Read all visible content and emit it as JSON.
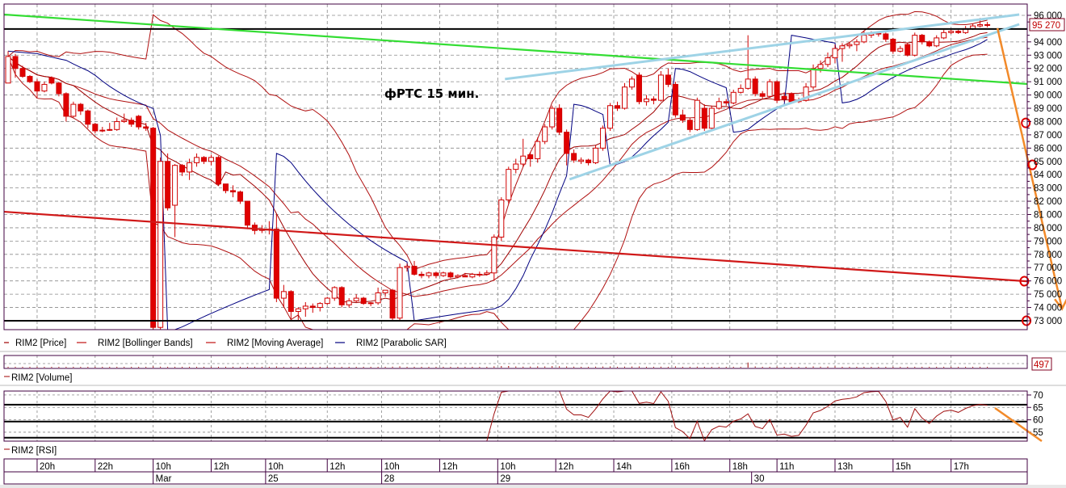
{
  "chart_data": {
    "type": "candlestick",
    "title": "фРТС   15 мин.",
    "ylim": [
      72330,
      96850
    ],
    "xlim": [
      -0.56,
      140.5
    ],
    "grid": true,
    "y_ticks": [
      "96 000",
      "94 000",
      "93 000",
      "92 000",
      "91 000",
      "90 000",
      "89 000",
      "88 000",
      "87 000",
      "86 000",
      "85 000",
      "84 000",
      "83 000",
      "82 000",
      "81 000",
      "80 000",
      "79 000",
      "78 000",
      "77 000",
      "76 000",
      "75 000",
      "74 000",
      "73 000"
    ],
    "last_price_label": "95 270",
    "last_price": 95270,
    "colors": {
      "up": "#ffffff",
      "down": "#e00000",
      "candle_edge": "#d00000",
      "bollinger": "#b01010",
      "moving_average": "#a00000",
      "sar": "#000080",
      "rsi": "#a01010",
      "support_upper": "#9ed3e6",
      "trend_green": "#33dd33",
      "trend_red": "#d01818",
      "forecast": "#f28a2a",
      "level": "#000000"
    },
    "legend": [
      {
        "label": "RIM2 [Price]",
        "color": "#a00000"
      },
      {
        "label": "RIM2 [Bollinger Bands]",
        "color": "#c01010"
      },
      {
        "label": "RIM2 [Moving Average]",
        "color": "#c01010"
      },
      {
        "label": "RIM2 [Parabolic SAR]",
        "color": "#000080"
      }
    ],
    "volume_label": "RIM2 [Volume]",
    "volume_max_label": "497",
    "volume_max": 497,
    "rsi_label": "RIM2 [RSI]",
    "rsi_ylim": [
      51.4,
      71.6
    ],
    "rsi_ticks": [
      "70",
      "65",
      "60",
      "55"
    ],
    "rsi_levels": [
      66.1,
      59.3,
      52.8
    ],
    "time_ticks": [
      {
        "label": "20h",
        "bar": 4
      },
      {
        "label": "22h",
        "bar": 12
      },
      {
        "label": "10h",
        "bar": 20
      },
      {
        "label": "12h",
        "bar": 28
      },
      {
        "label": "10h",
        "bar": 35.5
      },
      {
        "label": "12h",
        "bar": 44
      },
      {
        "label": "10h",
        "bar": 51.5
      },
      {
        "label": "12h",
        "bar": 59.5
      },
      {
        "label": "10h",
        "bar": 67.5
      },
      {
        "label": "12h",
        "bar": 75.5
      },
      {
        "label": "14h",
        "bar": 83.5
      },
      {
        "label": "16h",
        "bar": 91.5
      },
      {
        "label": "18h",
        "bar": 99.5
      },
      {
        "label": "11h",
        "bar": 106
      },
      {
        "label": "13h",
        "bar": 114
      },
      {
        "label": "15h",
        "bar": 122
      },
      {
        "label": "17h",
        "bar": 130
      }
    ],
    "date_ticks": [
      {
        "label": "Mar",
        "bar": 20
      },
      {
        "label": "25",
        "bar": 35.5
      },
      {
        "label": "28",
        "bar": 51.5
      },
      {
        "label": "29",
        "bar": 67.5
      },
      {
        "label": "30",
        "bar": 102.5
      }
    ],
    "candles": [
      [
        90900,
        93300,
        90900,
        92900
      ],
      [
        92900,
        93100,
        91300,
        92000
      ],
      [
        92000,
        92200,
        91300,
        91400
      ],
      [
        91400,
        91500,
        90900,
        91000
      ],
      [
        91000,
        91200,
        89800,
        90300
      ],
      [
        90300,
        91000,
        90200,
        90800
      ],
      [
        91300,
        91400,
        90800,
        90900
      ],
      [
        90900,
        91000,
        89900,
        90100
      ],
      [
        90100,
        90200,
        88000,
        88400
      ],
      [
        88400,
        89500,
        88300,
        89300
      ],
      [
        89300,
        89400,
        88500,
        88800
      ],
      [
        88800,
        88900,
        87500,
        87800
      ],
      [
        87800,
        87900,
        87100,
        87300
      ],
      [
        87300,
        87600,
        87200,
        87350
      ],
      [
        87350,
        87900,
        87300,
        87400
      ],
      [
        87400,
        88300,
        87300,
        88000
      ],
      [
        88000,
        88600,
        87900,
        88100
      ],
      [
        88100,
        88300,
        87600,
        87800
      ],
      [
        88400,
        88500,
        87400,
        87600
      ],
      [
        87600,
        87900,
        87300,
        87500
      ],
      [
        87500,
        87600,
        72000,
        72500
      ],
      [
        72500,
        85300,
        72000,
        85000
      ],
      [
        85000,
        85600,
        81300,
        81500
      ],
      [
        81700,
        84800,
        79300,
        84700
      ],
      [
        84700,
        84800,
        83900,
        84200
      ],
      [
        84200,
        85200,
        83600,
        84900
      ],
      [
        84900,
        85600,
        84600,
        85300
      ],
      [
        85300,
        85400,
        84800,
        85000
      ],
      [
        85000,
        85500,
        84700,
        85300
      ],
      [
        85300,
        85400,
        83200,
        83300
      ],
      [
        83300,
        83300,
        82600,
        82800
      ],
      [
        82800,
        83200,
        82300,
        82700
      ],
      [
        82700,
        82800,
        81800,
        82000
      ],
      [
        82000,
        82000,
        79900,
        80200
      ],
      [
        80200,
        80400,
        79500,
        79800
      ],
      [
        79800,
        80200,
        79600,
        79900
      ],
      [
        79900,
        80500,
        79500,
        79900
      ],
      [
        79900,
        81000,
        74400,
        74700
      ],
      [
        74700,
        75700,
        74000,
        75200
      ],
      [
        75200,
        75300,
        73000,
        73700
      ],
      [
        73700,
        74000,
        73000,
        73900
      ],
      [
        73900,
        74400,
        73300,
        74100
      ],
      [
        74100,
        74300,
        73600,
        74000
      ],
      [
        74000,
        74400,
        73700,
        74300
      ],
      [
        74300,
        74800,
        74200,
        74700
      ],
      [
        74700,
        75600,
        74500,
        75500
      ],
      [
        75500,
        75600,
        74000,
        74200
      ],
      [
        74200,
        74700,
        74000,
        74500
      ],
      [
        74500,
        75000,
        74400,
        74700
      ],
      [
        74700,
        74800,
        74200,
        74300
      ],
      [
        74300,
        74400,
        74100,
        74350
      ],
      [
        74350,
        75500,
        74200,
        75100
      ],
      [
        75100,
        75300,
        74800,
        75300
      ],
      [
        75300,
        75400,
        73000,
        73200
      ],
      [
        73200,
        77300,
        73000,
        77000
      ],
      [
        77000,
        77300,
        76700,
        77100
      ],
      [
        77100,
        77500,
        76400,
        76500
      ],
      [
        76500,
        76700,
        76200,
        76400
      ],
      [
        76400,
        76700,
        76200,
        76600
      ],
      [
        76600,
        76700,
        76200,
        76400
      ],
      [
        76400,
        76700,
        76300,
        76600
      ],
      [
        76600,
        76700,
        76200,
        76300
      ],
      [
        76300,
        76500,
        76200,
        76400
      ],
      [
        76400,
        76600,
        76300,
        76300
      ],
      [
        76300,
        76600,
        76200,
        76500
      ],
      [
        76500,
        76700,
        76300,
        76500
      ],
      [
        76500,
        76800,
        76400,
        76600
      ],
      [
        76600,
        79500,
        76000,
        79300
      ],
      [
        79300,
        82300,
        79000,
        82100
      ],
      [
        82100,
        84600,
        81800,
        84400
      ],
      [
        84400,
        85200,
        84100,
        84800
      ],
      [
        84800,
        86700,
        84600,
        85400
      ],
      [
        85500,
        85700,
        84600,
        85200
      ],
      [
        85200,
        86800,
        84900,
        86500
      ],
      [
        86500,
        87800,
        86300,
        87600
      ],
      [
        87600,
        89200,
        87400,
        89000
      ],
      [
        89000,
        89300,
        87000,
        87200
      ],
      [
        87200,
        87400,
        84700,
        85600
      ],
      [
        85600,
        85900,
        84900,
        85100
      ],
      [
        85000,
        85300,
        84800,
        85100
      ],
      [
        85100,
        85200,
        84700,
        84900
      ],
      [
        84900,
        86200,
        84800,
        86000
      ],
      [
        86000,
        87700,
        85800,
        87500
      ],
      [
        87500,
        89400,
        87300,
        89200
      ],
      [
        89200,
        89500,
        88800,
        89000
      ],
      [
        89000,
        90900,
        88900,
        90600
      ],
      [
        90600,
        91400,
        90400,
        91200
      ],
      [
        91500,
        91700,
        89300,
        89500
      ],
      [
        89500,
        90000,
        89200,
        89700
      ],
      [
        89700,
        89900,
        89300,
        89600
      ],
      [
        89600,
        91800,
        89500,
        91500
      ],
      [
        91500,
        92000,
        90600,
        90800
      ],
      [
        90800,
        91000,
        88300,
        88500
      ],
      [
        88500,
        88900,
        87900,
        88100
      ],
      [
        88100,
        88300,
        87200,
        87400
      ],
      [
        87400,
        89800,
        87300,
        89600
      ],
      [
        89000,
        89300,
        87300,
        87500
      ],
      [
        87500,
        89200,
        87400,
        89000
      ],
      [
        89000,
        89800,
        88900,
        89500
      ],
      [
        89500,
        89700,
        89200,
        89400
      ],
      [
        89400,
        90400,
        89300,
        90200
      ],
      [
        90200,
        90800,
        90100,
        90500
      ],
      [
        90500,
        94500,
        90400,
        91200
      ],
      [
        91200,
        91400,
        89900,
        90100
      ],
      [
        90100,
        90300,
        89700,
        89900
      ],
      [
        89900,
        91200,
        89800,
        91000
      ],
      [
        91000,
        91100,
        89400,
        89600
      ],
      [
        89900,
        90200,
        89500,
        89700
      ],
      [
        90100,
        90200,
        89400,
        89500
      ],
      [
        89500,
        89800,
        89400,
        89600
      ],
      [
        89600,
        90900,
        89500,
        90600
      ],
      [
        90600,
        92300,
        90400,
        92000
      ],
      [
        92000,
        92600,
        91700,
        92300
      ],
      [
        92300,
        93200,
        92100,
        92800
      ],
      [
        92800,
        93800,
        92400,
        93500
      ],
      [
        93500,
        93900,
        92500,
        93700
      ],
      [
        93700,
        94000,
        93500,
        93800
      ],
      [
        93800,
        94200,
        93300,
        94000
      ],
      [
        94000,
        94800,
        93900,
        94500
      ],
      [
        94500,
        94800,
        94300,
        94600
      ],
      [
        94600,
        94800,
        94400,
        94650
      ],
      [
        94600,
        94700,
        94000,
        94200
      ],
      [
        94200,
        94300,
        93100,
        93300
      ],
      [
        93300,
        93700,
        93200,
        93500
      ],
      [
        93800,
        93900,
        92900,
        93000
      ],
      [
        93000,
        94700,
        92900,
        94500
      ],
      [
        94500,
        94600,
        93800,
        94000
      ],
      [
        94000,
        94100,
        93600,
        93700
      ],
      [
        93700,
        94500,
        93600,
        94300
      ],
      [
        94300,
        94900,
        94200,
        94700
      ],
      [
        94700,
        94900,
        94600,
        94800
      ],
      [
        94800,
        94900,
        94600,
        94700
      ],
      [
        94700,
        95200,
        94600,
        95000
      ],
      [
        95000,
        95400,
        94900,
        95200
      ],
      [
        95200,
        95800,
        95100,
        95300
      ],
      [
        95300,
        95500,
        95100,
        95270
      ]
    ],
    "volumes": [
      60,
      40,
      35,
      30,
      30,
      25,
      30,
      35,
      40,
      30,
      30,
      35,
      30,
      25,
      20,
      25,
      20,
      25,
      30,
      30,
      120,
      90,
      80,
      60,
      40,
      40,
      35,
      30,
      30,
      50,
      40,
      35,
      40,
      60,
      40,
      35,
      30,
      110,
      60,
      50,
      40,
      35,
      30,
      30,
      35,
      40,
      40,
      30,
      25,
      25,
      25,
      35,
      30,
      90,
      120,
      40,
      30,
      25,
      25,
      25,
      25,
      25,
      25,
      25,
      30,
      30,
      35,
      120,
      150,
      160,
      110,
      90,
      100,
      120,
      110,
      140,
      130,
      110,
      90,
      80,
      70,
      90,
      100,
      110,
      70,
      90,
      100,
      110,
      80,
      60,
      90,
      70,
      120,
      80,
      70,
      90,
      80,
      70,
      60,
      80,
      70,
      60,
      497,
      110,
      80,
      70,
      90,
      80,
      70,
      60,
      80,
      110,
      90,
      100,
      120,
      70,
      60,
      50,
      60,
      70,
      50,
      60,
      70,
      80,
      60,
      50,
      40,
      40,
      50,
      60,
      40,
      40,
      50,
      40,
      40,
      40
    ],
    "annotations": {
      "levels": [
        94970,
        73000
      ],
      "trend_green": {
        "from": [
          -0.56,
          96060
        ],
        "to": [
          140.5,
          90830
        ]
      },
      "trend_red": {
        "from": [
          -0.56,
          81210
        ],
        "to": [
          140.5,
          75970
        ]
      },
      "channel_upper": {
        "from": [
          68.5,
          91200
        ],
        "to": [
          139.4,
          96060
        ]
      },
      "channel_lower": {
        "from": [
          77.4,
          83650
        ],
        "to": [
          139.4,
          95330
        ]
      },
      "forecast": {
        "from": [
          136.4,
          95030
        ],
        "to": [
          145.3,
          73900
        ]
      },
      "targets": [
        [
          140.3,
          87900
        ],
        [
          141.2,
          84740
        ],
        [
          140.1,
          75980
        ],
        [
          140.4,
          73000
        ]
      ]
    }
  }
}
